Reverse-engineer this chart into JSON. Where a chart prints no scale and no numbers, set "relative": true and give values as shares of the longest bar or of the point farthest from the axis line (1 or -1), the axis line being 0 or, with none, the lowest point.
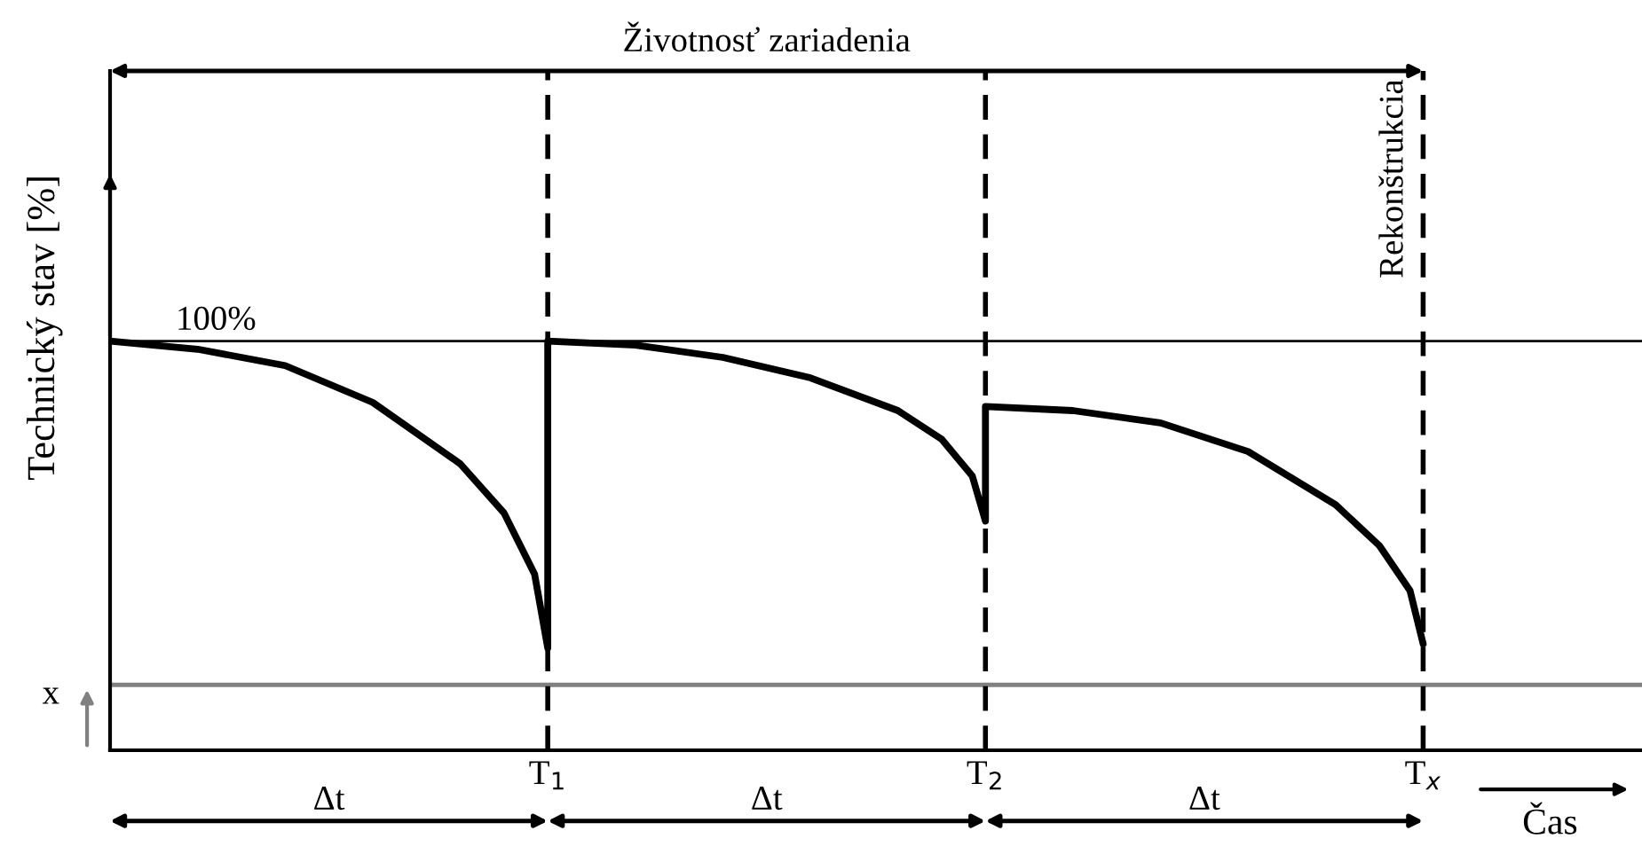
{
  "chart_data": {
    "type": "line",
    "relative": true,
    "ylabel": "Technický stav [%]",
    "xlabel": "Čas",
    "xlim": [
      0,
      3.5
    ],
    "xticks": [
      {
        "value": 1,
        "label": "T$_{1}$"
      },
      {
        "value": 2,
        "label": "T$_{2}$"
      },
      {
        "value": 3,
        "label": "T$_{x}$"
      }
    ],
    "series": [
      {
        "color": "#000000",
        "x": [
          0,
          0.2,
          0.4,
          0.6,
          0.8,
          0.9,
          0.97,
          1,
          1,
          1.2,
          1.4,
          1.6,
          1.8,
          1.9,
          1.97,
          2,
          2,
          2.2,
          2.4,
          2.6,
          2.8,
          2.9,
          2.97,
          3
        ],
        "values": [
          1,
          0.98,
          0.94,
          0.85,
          0.7,
          0.58,
          0.43,
          0.25,
          1,
          0.99,
          0.96,
          0.91,
          0.83,
          0.76,
          0.67,
          0.56,
          0.84,
          0.83,
          0.8,
          0.73,
          0.6,
          0.5,
          0.39,
          0.26
        ]
      }
    ],
    "ref_lines": [
      {
        "axis": "y",
        "value": 1,
        "label": "100%",
        "color": "#000000",
        "line_style": "solid"
      },
      {
        "axis": "y",
        "value": 0.16,
        "label": "x",
        "color": "#808080",
        "line_style": "solid"
      },
      {
        "axis": "x",
        "value": 1,
        "label": null,
        "color": "#000000",
        "line_style": "dashed"
      },
      {
        "axis": "x",
        "value": 2,
        "label": null,
        "color": "#000000",
        "line_style": "dashed"
      },
      {
        "axis": "x",
        "value": 3,
        "label": "Rekonštrukcia",
        "color": "#000000",
        "line_style": "dashed"
      }
    ],
    "annotations": [
      "Životnosť zariadenia",
      "Δt",
      "Δt",
      "Δt"
    ],
    "marker": "none",
    "line_style": "solid",
    "grid": false,
    "legend": false
  }
}
